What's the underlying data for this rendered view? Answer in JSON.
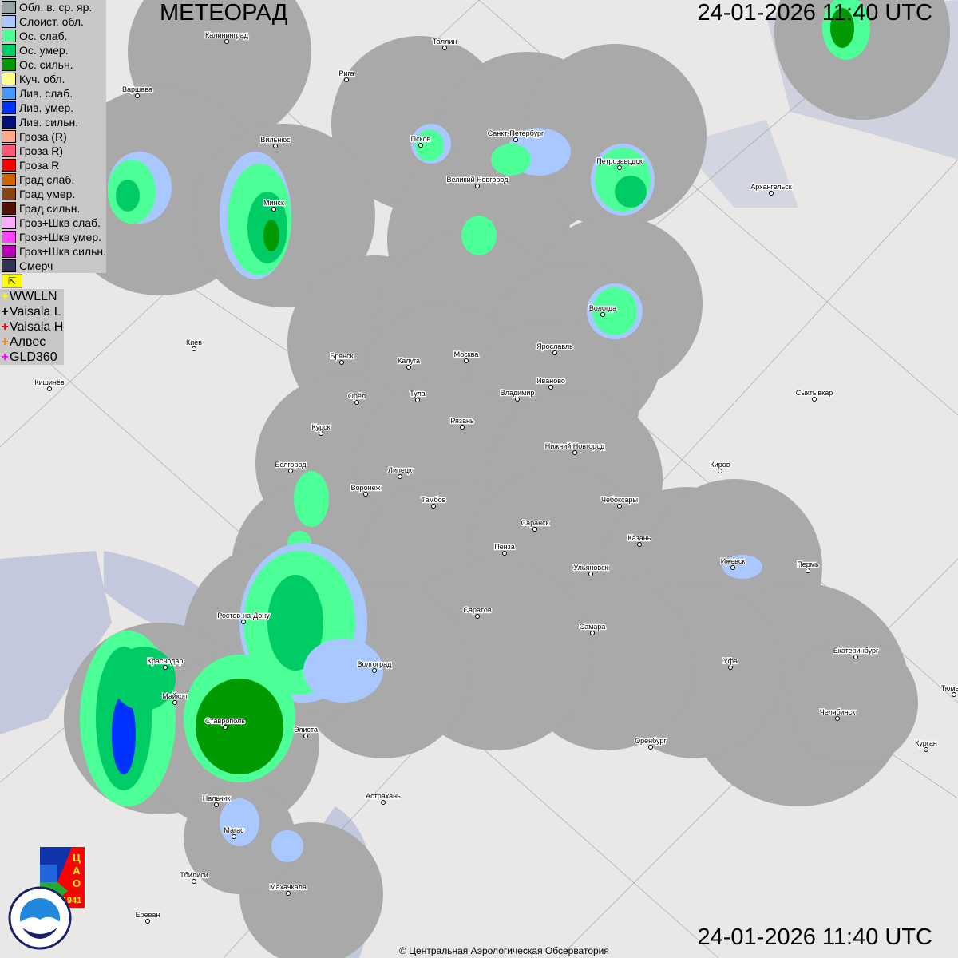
{
  "header": {
    "title": "МЕТЕОРАД",
    "timestamp": "24-01-2026  11:40 UTC"
  },
  "legend": [
    {
      "label": "Обл. в. ср. яр.",
      "color": "#9aa3a6"
    },
    {
      "label": "Слоист. обл.",
      "color": "#a8c8ff"
    },
    {
      "label": "Ос. слаб.",
      "color": "#4cff96"
    },
    {
      "label": "Ос. умер.",
      "color": "#00cc66"
    },
    {
      "label": "Ос. сильн.",
      "color": "#009900"
    },
    {
      "label": "Куч. обл.",
      "color": "#ffff88"
    },
    {
      "label": "Лив. слаб.",
      "color": "#4499ff"
    },
    {
      "label": "Лив. умер.",
      "color": "#0033ff"
    },
    {
      "label": "Лив. сильн.",
      "color": "#001177"
    },
    {
      "label": "Гроза (R)",
      "color": "#ffaa88"
    },
    {
      "label": "Гроза R)",
      "color": "#ff5577"
    },
    {
      "label": "Гроза R",
      "color": "#ff0000"
    },
    {
      "label": "Град слаб.",
      "color": "#cc6600"
    },
    {
      "label": "Град умер.",
      "color": "#884411"
    },
    {
      "label": "Град сильн.",
      "color": "#551100"
    },
    {
      "label": "Гроз+Шкв слаб.",
      "color": "#ffaaff"
    },
    {
      "label": "Гроз+Шкв умер.",
      "color": "#ff44ff"
    },
    {
      "label": "Гроз+Шкв сильн.",
      "color": "#bb00bb"
    },
    {
      "label": "Смерч",
      "color": "#333355"
    }
  ],
  "toggle_icon": "cursor-arrow-icon",
  "lightning": [
    {
      "label": "WWLLN",
      "color": "#ffee00"
    },
    {
      "label": "Vaisala L",
      "color": "#000000"
    },
    {
      "label": "Vaisala H",
      "color": "#ff0000"
    },
    {
      "label": "Алвес",
      "color": "#ff8800"
    },
    {
      "label": "GLD360",
      "color": "#ff00ff"
    }
  ],
  "cities": [
    "Калининград",
    "Таллин",
    "Рига",
    "Варшава",
    "Вильнюс",
    "Псков",
    "Санкт-Петербург",
    "Петрозаводск",
    "Архангельск",
    "Великий Новгород",
    "Минск",
    "Вологда",
    "Ярославль",
    "Москва",
    "Калуга",
    "Брянск",
    "Киев",
    "Иваново",
    "Владимир",
    "Тула",
    "Орёл",
    "Кишинёв",
    "Сыктывкар",
    "Рязань",
    "Курск",
    "Нижний Новгород",
    "Киров",
    "Белгород",
    "Липецк",
    "Воронеж",
    "Тамбов",
    "Чебоксары",
    "Саранск",
    "Казань",
    "Пенза",
    "Ижевск",
    "Пермь",
    "Ульяновск",
    "Саратов",
    "Самара",
    "Ростов-на-Дону",
    "Краснодар",
    "Волгоград",
    "Уфа",
    "Екатеринбург",
    "Майкоп",
    "Ставрополь",
    "Элиста",
    "Челябинск",
    "Оренбург",
    "Курган",
    "Тюмень",
    "Нальчик",
    "Астрахань",
    "Магас",
    "Тбилиси",
    "Махачкала",
    "Ереван"
  ],
  "logos": {
    "cao": "ЦАО 1941",
    "roshydromet": "РОСГИДРОМЕТ ROSHYDROMET"
  },
  "colors": {
    "radar_coverage": "#a9a9a9",
    "land": "#e9e8e6",
    "water": "#c4c8dc"
  },
  "copyright": "© Центральная Аэрологическая Обсерватория"
}
